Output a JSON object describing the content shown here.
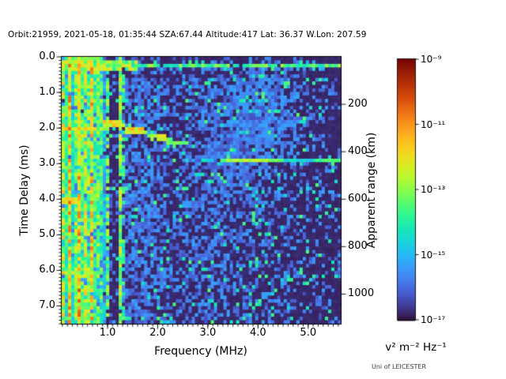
{
  "figure": {
    "title": "Orbit:21959, 2021-05-18, 01:35:44 SZA:67.44 Altitude:417 Lat: 36.37 W.Lon: 207.59",
    "credit": "Uni of LEICESTER"
  },
  "chart_data": {
    "type": "heatmap",
    "title": "Orbit:21959, 2021-05-18, 01:35:44 SZA:67.44 Altitude:417 Lat: 36.37 W.Lon: 207.59",
    "xlabel": "Frequency (MHz)",
    "ylabel": "Time Delay (ms)",
    "xlim": [
      0.085,
      5.65
    ],
    "ylim": [
      7.5,
      0.0
    ],
    "x_ticks": [
      1.0,
      2.0,
      3.0,
      4.0,
      5.0
    ],
    "x_tick_labels": [
      "1.0",
      "2.0",
      "3.0",
      "4.0",
      "5.0"
    ],
    "x_minor_step": 0.1,
    "y_ticks": [
      0,
      1,
      2,
      3,
      4,
      5,
      6,
      7
    ],
    "y_tick_labels": [
      "0.0",
      "1.0",
      "2.0",
      "3.0",
      "4.0",
      "5.0",
      "6.0",
      "7.0"
    ],
    "y_minor_step": 0.1,
    "right_axis": {
      "label": "Apparent range (km)",
      "ticks": [
        200,
        400,
        600,
        800,
        1000
      ],
      "tick_labels": [
        "200",
        "400",
        "600",
        "800",
        "1000"
      ],
      "km_per_ms": 150
    },
    "colorbar": {
      "label": "v² m⁻² Hz⁻¹",
      "colormap": "turbo",
      "scale": "log",
      "exponent_range": [
        -17,
        -9
      ],
      "ticks": [
        {
          "text": "10⁻⁹",
          "exp": -9
        },
        {
          "text": "10⁻¹¹",
          "exp": -11
        },
        {
          "text": "10⁻¹³",
          "exp": -13
        },
        {
          "text": "10⁻¹⁵",
          "exp": -15
        },
        {
          "text": "10⁻¹⁷",
          "exp": -17
        }
      ]
    },
    "render_features": {
      "seed": 12,
      "grid": {
        "ncols": 88,
        "nrows": 76
      },
      "background_level": 0.02,
      "speckle": {
        "density_profile": [
          [
            0.95,
            0.55
          ],
          [
            1.02,
            0.38
          ],
          [
            1.1,
            0.25
          ],
          [
            1.22,
            0.28
          ],
          [
            1.32,
            0.55
          ],
          [
            1.6,
            0.62
          ],
          [
            2.05,
            0.55
          ],
          [
            2.25,
            0.28
          ],
          [
            2.5,
            0.42
          ],
          [
            2.75,
            0.46
          ],
          [
            3.05,
            0.5
          ],
          [
            3.35,
            0.44
          ],
          [
            3.75,
            0.38
          ],
          [
            4.2,
            0.33
          ],
          [
            4.7,
            0.27
          ],
          [
            5.1,
            0.2
          ],
          [
            5.45,
            0.15
          ],
          [
            5.65,
            0.13
          ]
        ],
        "low_freq_base": {
          "f_max": 0.95,
          "p": 0.92,
          "value_range": [
            0.1,
            0.34
          ]
        },
        "value_range": [
          0.08,
          0.22
        ],
        "bright_chance": 0.05,
        "bright_range": [
          0.3,
          0.45
        ],
        "top_dark_delay": 0.55,
        "top_dark_mult": 0.45
      },
      "plasma_harmonic_stripes": [
        {
          "f": 0.105,
          "v": 0.38,
          "cov": 0.95
        },
        {
          "f": 0.14,
          "v": 0.55,
          "cov": 0.9
        },
        {
          "f": 0.185,
          "v": 0.4,
          "cov": 0.9
        },
        {
          "f": 0.225,
          "v": 0.64,
          "cov": 0.92
        },
        {
          "f": 0.31,
          "v": 0.35,
          "cov": 0.85
        },
        {
          "f": 0.35,
          "v": 0.5,
          "cov": 0.85
        },
        {
          "f": 0.43,
          "v": 0.66,
          "cov": 0.95
        },
        {
          "f": 0.475,
          "v": 0.45,
          "cov": 0.85
        },
        {
          "f": 0.53,
          "v": 0.55,
          "cov": 0.85
        },
        {
          "f": 0.645,
          "v": 0.48,
          "cov": 0.8
        },
        {
          "f": 0.7,
          "v": 0.63,
          "cov": 0.9
        },
        {
          "f": 0.755,
          "v": 0.42,
          "cov": 0.8
        },
        {
          "f": 0.8,
          "v": 0.45,
          "cov": 0.85
        },
        {
          "f": 0.85,
          "v": 0.38,
          "cov": 0.75
        },
        {
          "f": 0.9,
          "v": 0.42,
          "cov": 0.7
        },
        {
          "f": 1.0,
          "v": 0.45,
          "cov": 0.75
        },
        {
          "f": 1.26,
          "v": 0.5,
          "cov": 0.9
        },
        {
          "f": 1.33,
          "v": 0.4,
          "cov": 0.5
        }
      ],
      "horizontal_bands": [
        {
          "name": "transmit-pulse-left",
          "d": 0.27,
          "h": 0.28,
          "f0": 0.085,
          "f1": 1.6,
          "v": 0.5,
          "cov": 0.95,
          "jitter": 0.3
        },
        {
          "name": "transmit-pulse-right",
          "d": 0.22,
          "h": 0.14,
          "f0": 1.6,
          "f1": 5.65,
          "v": 0.42,
          "cov": 0.9,
          "jitter": 0.25
        },
        {
          "name": "transmit-pulse-tail",
          "d": 0.38,
          "h": 0.1,
          "f0": 1.6,
          "f1": 5.65,
          "v": 0.2,
          "cov": 0.3,
          "jitter": 0.1
        },
        {
          "name": "cyclotron-echo-1",
          "d": 2.02,
          "h": 0.15,
          "f0": 0.085,
          "f1": 0.8,
          "v": 0.62,
          "cov": 0.97,
          "jitter": 0.15
        },
        {
          "name": "cyclotron-echo-1b",
          "d": 2.02,
          "h": 0.15,
          "f0": 0.8,
          "f1": 1.05,
          "v": 0.5,
          "cov": 0.8,
          "jitter": 0.15
        },
        {
          "name": "cyclotron-echo-2",
          "d": 4.06,
          "h": 0.13,
          "f0": 0.085,
          "f1": 0.38,
          "v": 0.6,
          "cov": 0.95,
          "jitter": 0.15
        },
        {
          "name": "cyclotron-echo-3",
          "d": 6.06,
          "h": 0.13,
          "f0": 0.085,
          "f1": 0.38,
          "v": 0.55,
          "cov": 0.95,
          "jitter": 0.15
        }
      ],
      "echo_traces": [
        {
          "name": "ionospheric-echo-a",
          "pts": [
            [
              0.92,
              1.86
            ],
            [
              1.35,
              1.93
            ],
            [
              1.38,
              2.06
            ],
            [
              1.76,
              2.1
            ]
          ],
          "h": 0.16,
          "v": 0.62,
          "cov": 0.97
        },
        {
          "name": "ionospheric-echo-b",
          "pts": [
            [
              1.76,
              2.1
            ],
            [
              1.79,
              2.23
            ],
            [
              2.16,
              2.27
            ]
          ],
          "h": 0.16,
          "v": 0.55,
          "cov": 0.95
        },
        {
          "name": "ionospheric-echo-c",
          "pts": [
            [
              2.16,
              2.27
            ],
            [
              2.19,
              2.39
            ],
            [
              2.62,
              2.43
            ]
          ],
          "h": 0.16,
          "v": 0.46,
          "cov": 0.9
        },
        {
          "name": "surface-reflection",
          "pts": [
            [
              2.78,
              2.93
            ],
            [
              5.62,
              2.93
            ]
          ],
          "h": 0.12,
          "v": 0.3,
          "cov": 0.88
        },
        {
          "name": "surface-reflection-bright",
          "pts": [
            [
              3.25,
              2.93
            ],
            [
              4.5,
              2.93
            ]
          ],
          "h": 0.12,
          "v": 0.5,
          "cov": 0.95
        },
        {
          "name": "surface-reflection-right",
          "pts": [
            [
              5.15,
              2.93
            ],
            [
              5.62,
              2.93
            ]
          ],
          "h": 0.12,
          "v": 0.42,
          "cov": 0.9
        }
      ],
      "vertical_segments": [
        {
          "name": "trace-cusp",
          "f": 0.9,
          "d0": 1.2,
          "d1": 1.9,
          "v": 0.5,
          "cov": 0.85
        }
      ],
      "diffuse_blobs": [
        {
          "name": "oblique-spread-echo-1",
          "f": 4.15,
          "d": 1.5,
          "rf": 0.8,
          "rd": 1.1,
          "v": 0.16
        },
        {
          "name": "oblique-spread-echo-2",
          "f": 3.55,
          "d": 2.6,
          "rf": 0.55,
          "rd": 1.3,
          "v": 0.12
        }
      ]
    }
  }
}
